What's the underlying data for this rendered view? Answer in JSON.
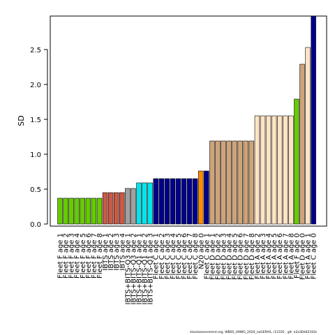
{
  "chart_data": {
    "type": "bar",
    "ylabel": "SD",
    "ylim": [
      0,
      2.98
    ],
    "yticks": [
      0.0,
      0.5,
      1.0,
      1.5,
      2.0,
      2.5
    ],
    "ytick_labels": [
      "0.0",
      "0.5",
      "1.0",
      "1.5",
      "2.0",
      "2.5"
    ],
    "colors": {
      "green": "#66cc00",
      "red": "#cc5a46",
      "grey": "#a0a0a0",
      "cyan": "#00e5ee",
      "navy": "#00008b",
      "orange": "#ff8c00",
      "tan": "#cfa37a",
      "bisque": "#ffe4c4",
      "axis": "#000000"
    },
    "bars": [
      {
        "label": "Fleet F age 1",
        "value": 0.37,
        "color": "green"
      },
      {
        "label": "Fleet F age 2",
        "value": 0.37,
        "color": "green"
      },
      {
        "label": "Fleet F age 3",
        "value": 0.37,
        "color": "green"
      },
      {
        "label": "Fleet F age 4",
        "value": 0.37,
        "color": "green"
      },
      {
        "label": "Fleet F age 5",
        "value": 0.37,
        "color": "green"
      },
      {
        "label": "Fleet F age 6",
        "value": 0.37,
        "color": "green"
      },
      {
        "label": "Fleet F age 7",
        "value": 0.37,
        "color": "green"
      },
      {
        "label": "Fleet F age 8",
        "value": 0.37,
        "color": "green"
      },
      {
        "label": "IBTS age 1",
        "value": 0.45,
        "color": "red"
      },
      {
        "label": "IBTS age 2",
        "value": 0.45,
        "color": "red"
      },
      {
        "label": "IBTS age 3",
        "value": 0.45,
        "color": "red"
      },
      {
        "label": "IBTS age 4",
        "value": 0.45,
        "color": "red"
      },
      {
        "label": "IBTS+BITS-Q3 age 1",
        "value": 0.51,
        "color": "grey"
      },
      {
        "label": "IBTS+BITS-Q3 age 2",
        "value": 0.51,
        "color": "grey"
      },
      {
        "label": "IBTS+BITS-Q1 age 1",
        "value": 0.59,
        "color": "cyan"
      },
      {
        "label": "IBTS+BITS-Q1 age 2",
        "value": 0.59,
        "color": "cyan"
      },
      {
        "label": "IBTS+BITS-Q1 age 3",
        "value": 0.59,
        "color": "cyan"
      },
      {
        "label": "Fleet C age 1",
        "value": 0.65,
        "color": "navy"
      },
      {
        "label": "Fleet C age 2",
        "value": 0.65,
        "color": "navy"
      },
      {
        "label": "Fleet C age 3",
        "value": 0.65,
        "color": "navy"
      },
      {
        "label": "Fleet C age 4",
        "value": 0.65,
        "color": "navy"
      },
      {
        "label": "Fleet C age 5",
        "value": 0.65,
        "color": "navy"
      },
      {
        "label": "Fleet C age 6",
        "value": 0.65,
        "color": "navy"
      },
      {
        "label": "Fleet C age 7",
        "value": 0.65,
        "color": "navy"
      },
      {
        "label": "Fleet C age 8",
        "value": 0.65,
        "color": "navy"
      },
      {
        "label": "N20 age 0",
        "value": 0.76,
        "color": "orange"
      },
      {
        "label": "Fleet C age 1",
        "value": 0.76,
        "color": "navy"
      },
      {
        "label": "Fleet D age 1",
        "value": 1.19,
        "color": "tan"
      },
      {
        "label": "Fleet D age 2",
        "value": 1.19,
        "color": "tan"
      },
      {
        "label": "Fleet D age 3",
        "value": 1.19,
        "color": "tan"
      },
      {
        "label": "Fleet D age 4",
        "value": 1.19,
        "color": "tan"
      },
      {
        "label": "Fleet D age 5",
        "value": 1.19,
        "color": "tan"
      },
      {
        "label": "Fleet D age 6",
        "value": 1.19,
        "color": "tan"
      },
      {
        "label": "Fleet D age 7",
        "value": 1.19,
        "color": "tan"
      },
      {
        "label": "Fleet D age 8",
        "value": 1.19,
        "color": "tan"
      },
      {
        "label": "Fleet A age 2",
        "value": 1.55,
        "color": "bisque"
      },
      {
        "label": "Fleet A age 3",
        "value": 1.55,
        "color": "bisque"
      },
      {
        "label": "Fleet A age 4",
        "value": 1.55,
        "color": "bisque"
      },
      {
        "label": "Fleet A age 5",
        "value": 1.55,
        "color": "bisque"
      },
      {
        "label": "Fleet A age 6",
        "value": 1.55,
        "color": "bisque"
      },
      {
        "label": "Fleet A age 7",
        "value": 1.55,
        "color": "bisque"
      },
      {
        "label": "Fleet A age 8",
        "value": 1.55,
        "color": "bisque"
      },
      {
        "label": "Fleet F age 0",
        "value": 1.79,
        "color": "green"
      },
      {
        "label": "Fleet D age 0",
        "value": 2.29,
        "color": "tan"
      },
      {
        "label": "Fleet A age 1",
        "value": 2.53,
        "color": "bisque"
      },
      {
        "label": "Fleet C age 0",
        "value": 2.98,
        "color": "navy"
      }
    ]
  },
  "footer": {
    "text": "stockassessment.org,  WBSS_HAWG_2020_noGERAS, r12335 ,  git:  e2a30d42316c"
  }
}
